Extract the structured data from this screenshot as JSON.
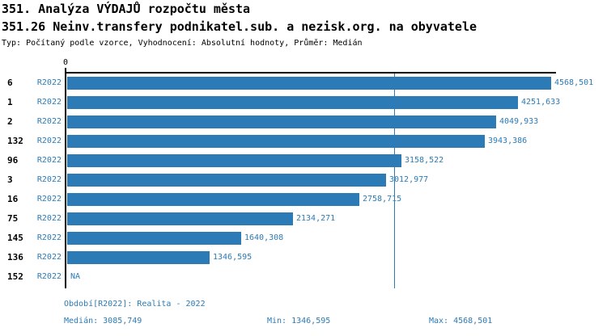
{
  "header": {
    "title": "351. Analýza VÝDAJŮ rozpočtu města",
    "subtitle": "351.26 Neinv.transfery podnikatel.sub. a nezisk.org. na obyvatele",
    "meta": "Typ: Počítaný podle vzorce, Vyhodnocení: Absolutní hodnoty, Průměr: Medián"
  },
  "colors": {
    "accent": "#2c7bb6",
    "axis": "#000000",
    "background": "#ffffff"
  },
  "chart_data": {
    "type": "bar",
    "orientation": "horizontal",
    "period_label": "R2022",
    "categories": [
      "6",
      "1",
      "2",
      "132",
      "96",
      "3",
      "16",
      "75",
      "145",
      "136",
      "152"
    ],
    "values": [
      4568.501,
      4251.633,
      4049.933,
      3943.386,
      3158.522,
      3012.977,
      2758.715,
      2134.271,
      1640.308,
      1346.595,
      null
    ],
    "value_labels": [
      "4568,501",
      "4251,633",
      "4049,933",
      "3943,386",
      "3158,522",
      "3012,977",
      "2758,715",
      "2134,271",
      "1640,308",
      "1346,595",
      "NA"
    ],
    "median_value": 3085.749,
    "x_axis": {
      "tick_labels": [
        "0"
      ],
      "tick_values": [
        0
      ]
    },
    "xlim": [
      0,
      4614
    ],
    "grid": false,
    "legend": false
  },
  "footer": {
    "period_info": "Období[R2022]: Realita - 2022",
    "median": "Medián: 3085,749",
    "min": "Min: 1346,595",
    "max": "Max: 4568,501"
  }
}
